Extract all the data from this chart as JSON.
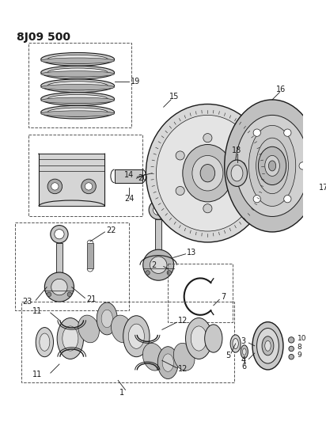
{
  "title": "8J09 500",
  "bg_color": "#ffffff",
  "line_color": "#1a1a1a",
  "dashed_box_color": "#555555",
  "title_fontsize": 10,
  "label_fontsize": 7,
  "fig_w": 4.12,
  "fig_h": 5.33,
  "dpi": 100
}
